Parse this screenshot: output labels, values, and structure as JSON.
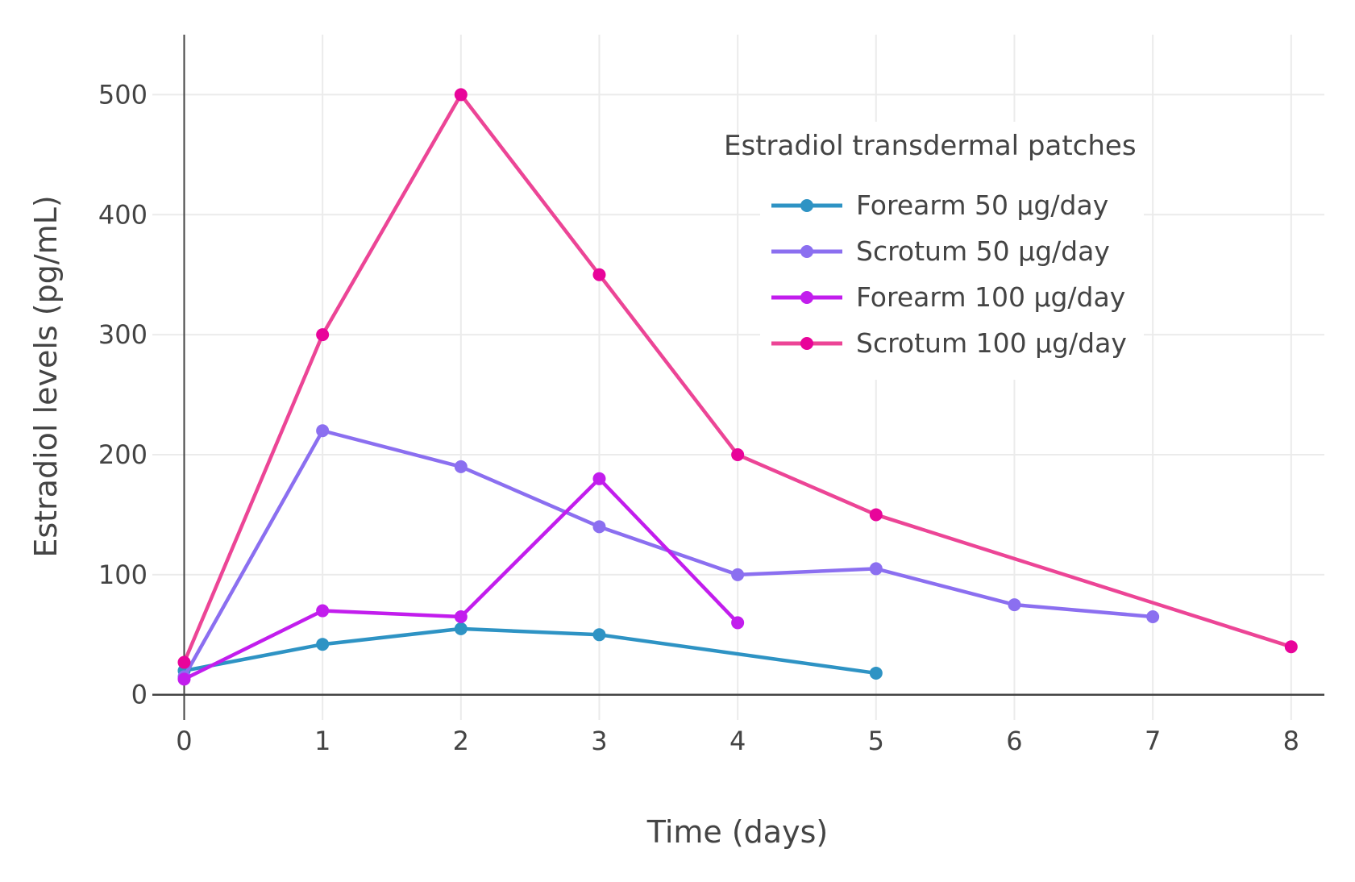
{
  "chart_data": {
    "type": "line",
    "title": "",
    "xlabel": "Time (days)",
    "ylabel": "Estradiol levels (pg/mL)",
    "xlim": [
      -0.23,
      8.24
    ],
    "ylim": [
      -21,
      550
    ],
    "xticks": [
      0,
      1,
      2,
      3,
      4,
      5,
      6,
      7,
      8
    ],
    "yticks": [
      0,
      100,
      200,
      300,
      400,
      500
    ],
    "grid": true,
    "legend": {
      "title": "Estradiol transdermal patches",
      "placement": "top-right"
    },
    "series": [
      {
        "name": "Forearm 50 µg/day",
        "color": "#2e93c4",
        "x": [
          0,
          1,
          2,
          3,
          5
        ],
        "y": [
          20,
          42,
          55,
          50,
          18
        ]
      },
      {
        "name": "Scrotum 50 µg/day",
        "color": "#8b6ff0",
        "x": [
          0,
          1,
          2,
          3,
          4,
          5,
          6,
          7
        ],
        "y": [
          15,
          220,
          190,
          140,
          100,
          105,
          75,
          65
        ]
      },
      {
        "name": "Forearm 100 µg/day",
        "color": "#c21ded",
        "x": [
          0,
          1,
          2,
          3,
          4
        ],
        "y": [
          13,
          70,
          65,
          180,
          60
        ]
      },
      {
        "name": "Scrotum 100 µg/day",
        "color": "#ec4596",
        "marker_color": "#e8049a",
        "x": [
          0,
          1,
          2,
          3,
          4,
          5,
          8
        ],
        "y": [
          27,
          300,
          500,
          350,
          200,
          150,
          40
        ]
      }
    ]
  }
}
